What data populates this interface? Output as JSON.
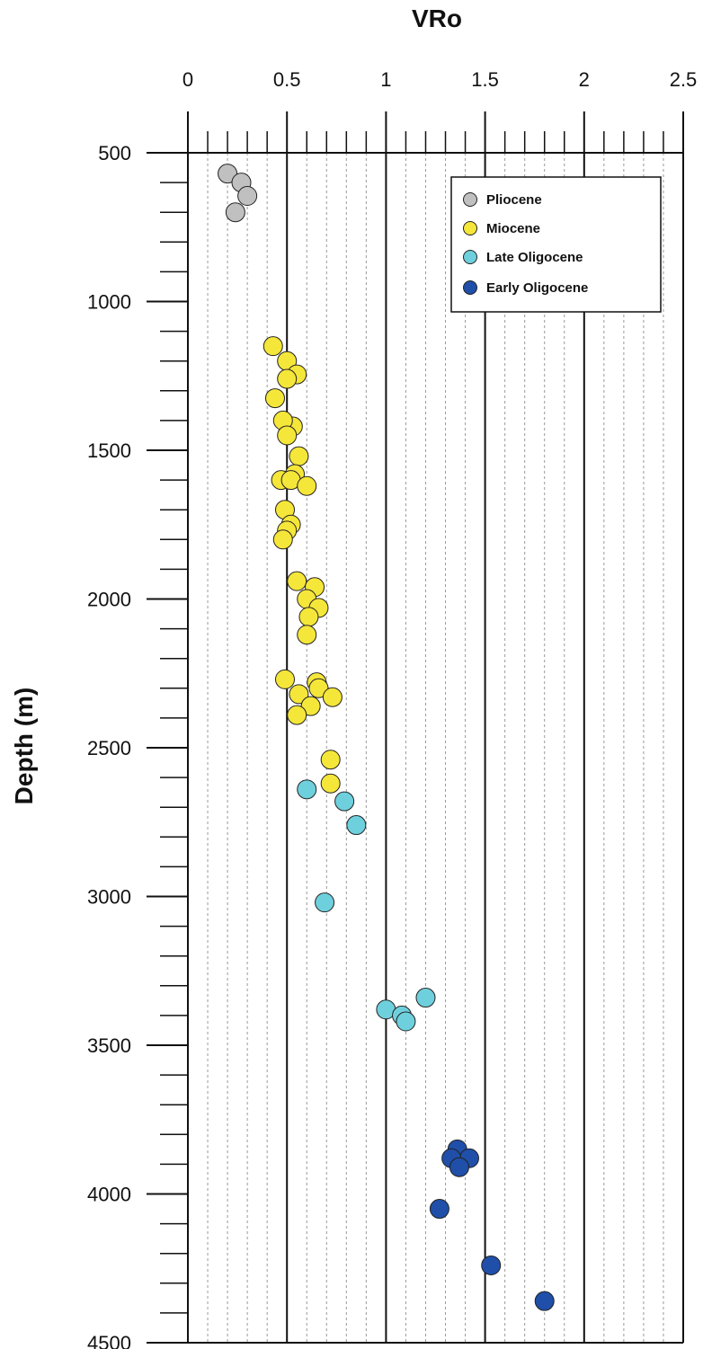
{
  "chart_data": {
    "type": "scatter",
    "title": "",
    "xlabel": "VRo",
    "ylabel": "Depth (m)",
    "x_axis_position": "top",
    "y_axis_inverted": true,
    "xlim": [
      0,
      2.5
    ],
    "ylim": [
      500,
      4500
    ],
    "x_ticks": [
      0,
      0.5,
      1,
      1.5,
      2,
      2.5
    ],
    "x_tick_labels": [
      "0",
      "0.5",
      "1",
      "1.5",
      "2",
      "2.5"
    ],
    "y_ticks": [
      500,
      1000,
      1500,
      2000,
      2500,
      3000,
      3500,
      4000,
      4500
    ],
    "y_tick_labels": [
      "500",
      "1000",
      "1500",
      "2000",
      "2500",
      "3000",
      "3500",
      "4000",
      "4500"
    ],
    "grid": true,
    "legend_position": "top-right",
    "series": [
      {
        "name": "Pliocene",
        "color": "#c0c0c0",
        "points": [
          [
            0.2,
            570
          ],
          [
            0.27,
            600
          ],
          [
            0.3,
            645
          ],
          [
            0.24,
            700
          ]
        ]
      },
      {
        "name": "Miocene",
        "color": "#f5e63a",
        "points": [
          [
            0.43,
            1150
          ],
          [
            0.5,
            1200
          ],
          [
            0.55,
            1245
          ],
          [
            0.5,
            1260
          ],
          [
            0.44,
            1325
          ],
          [
            0.53,
            1420
          ],
          [
            0.48,
            1400
          ],
          [
            0.5,
            1450
          ],
          [
            0.56,
            1520
          ],
          [
            0.54,
            1580
          ],
          [
            0.47,
            1600
          ],
          [
            0.52,
            1600
          ],
          [
            0.6,
            1620
          ],
          [
            0.49,
            1700
          ],
          [
            0.52,
            1750
          ],
          [
            0.5,
            1770
          ],
          [
            0.48,
            1800
          ],
          [
            0.55,
            1940
          ],
          [
            0.64,
            1960
          ],
          [
            0.6,
            2000
          ],
          [
            0.66,
            2030
          ],
          [
            0.61,
            2060
          ],
          [
            0.6,
            2120
          ],
          [
            0.49,
            2270
          ],
          [
            0.65,
            2280
          ],
          [
            0.66,
            2300
          ],
          [
            0.56,
            2320
          ],
          [
            0.73,
            2330
          ],
          [
            0.62,
            2360
          ],
          [
            0.55,
            2390
          ],
          [
            0.72,
            2540
          ],
          [
            0.72,
            2620
          ]
        ]
      },
      {
        "name": "Late Oligocene",
        "color": "#6fd0dd",
        "points": [
          [
            0.6,
            2640
          ],
          [
            0.79,
            2680
          ],
          [
            0.85,
            2760
          ],
          [
            0.69,
            3020
          ],
          [
            1.2,
            3340
          ],
          [
            1.0,
            3380
          ],
          [
            1.08,
            3400
          ],
          [
            1.1,
            3420
          ]
        ]
      },
      {
        "name": "Early Oligocene",
        "color": "#1f4fa8",
        "points": [
          [
            1.36,
            3850
          ],
          [
            1.42,
            3880
          ],
          [
            1.33,
            3880
          ],
          [
            1.37,
            3910
          ],
          [
            1.27,
            4050
          ],
          [
            1.53,
            4240
          ],
          [
            1.8,
            4360
          ]
        ]
      }
    ]
  }
}
